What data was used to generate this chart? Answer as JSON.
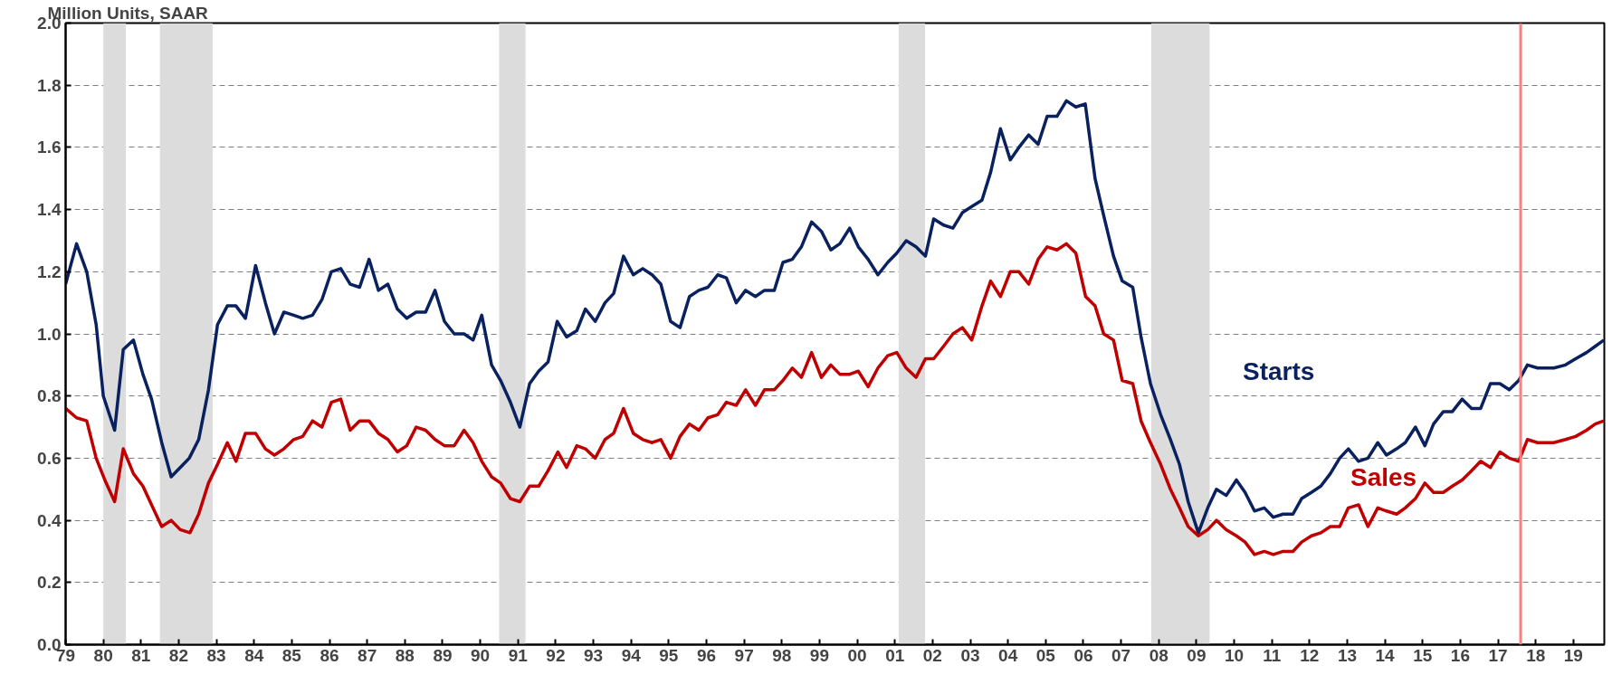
{
  "chart_data": {
    "type": "line",
    "ylabel": "Million Units, SAAR",
    "xlim": [
      1979,
      2019.82
    ],
    "ylim": [
      0,
      2
    ],
    "xticks": [
      {
        "value": 1979,
        "label": "79"
      },
      {
        "value": 1980,
        "label": "80"
      },
      {
        "value": 1981,
        "label": "81"
      },
      {
        "value": 1982,
        "label": "82"
      },
      {
        "value": 1983,
        "label": "83"
      },
      {
        "value": 1984,
        "label": "84"
      },
      {
        "value": 1985,
        "label": "85"
      },
      {
        "value": 1986,
        "label": "86"
      },
      {
        "value": 1987,
        "label": "87"
      },
      {
        "value": 1988,
        "label": "88"
      },
      {
        "value": 1989,
        "label": "89"
      },
      {
        "value": 1990,
        "label": "90"
      },
      {
        "value": 1991,
        "label": "91"
      },
      {
        "value": 1992,
        "label": "92"
      },
      {
        "value": 1993,
        "label": "93"
      },
      {
        "value": 1994,
        "label": "94"
      },
      {
        "value": 1995,
        "label": "95"
      },
      {
        "value": 1996,
        "label": "96"
      },
      {
        "value": 1997,
        "label": "97"
      },
      {
        "value": 1998,
        "label": "98"
      },
      {
        "value": 1999,
        "label": "99"
      },
      {
        "value": 2000,
        "label": "00"
      },
      {
        "value": 2001,
        "label": "01"
      },
      {
        "value": 2002,
        "label": "02"
      },
      {
        "value": 2003,
        "label": "03"
      },
      {
        "value": 2004,
        "label": "04"
      },
      {
        "value": 2005,
        "label": "05"
      },
      {
        "value": 2006,
        "label": "06"
      },
      {
        "value": 2007,
        "label": "07"
      },
      {
        "value": 2008,
        "label": "08"
      },
      {
        "value": 2009,
        "label": "09"
      },
      {
        "value": 2010,
        "label": "10"
      },
      {
        "value": 2011,
        "label": "11"
      },
      {
        "value": 2012,
        "label": "12"
      },
      {
        "value": 2013,
        "label": "13"
      },
      {
        "value": 2014,
        "label": "14"
      },
      {
        "value": 2015,
        "label": "15"
      },
      {
        "value": 2016,
        "label": "16"
      },
      {
        "value": 2017,
        "label": "17"
      },
      {
        "value": 2018,
        "label": "18"
      },
      {
        "value": 2019,
        "label": "19"
      }
    ],
    "yticks": [
      {
        "value": 0,
        "label": "0.0"
      },
      {
        "value": 0.2,
        "label": "0.2"
      },
      {
        "value": 0.4,
        "label": "0.4"
      },
      {
        "value": 0.6,
        "label": "0.6"
      },
      {
        "value": 0.8,
        "label": "0.8"
      },
      {
        "value": 1,
        "label": "1.0"
      },
      {
        "value": 1.2,
        "label": "1.2"
      },
      {
        "value": 1.4,
        "label": "1.4"
      },
      {
        "value": 1.6,
        "label": "1.6"
      },
      {
        "value": 1.8,
        "label": "1.8"
      },
      {
        "value": 2,
        "label": "2.0"
      }
    ],
    "grid": "y",
    "legend": false,
    "line_style": "solid",
    "marker": "none",
    "bands": [
      {
        "axis": "x",
        "from": 1980.0,
        "to": 1980.6,
        "label": null,
        "color": "#dcdcdc"
      },
      {
        "axis": "x",
        "from": 1981.5,
        "to": 1982.9,
        "label": null,
        "color": "#dcdcdc"
      },
      {
        "axis": "x",
        "from": 1990.5,
        "to": 1991.2,
        "label": null,
        "color": "#dcdcdc"
      },
      {
        "axis": "x",
        "from": 2001.1,
        "to": 2001.8,
        "label": null,
        "color": "#dcdcdc"
      },
      {
        "axis": "x",
        "from": 2007.8,
        "to": 2009.35,
        "label": null,
        "color": "#dcdcdc"
      }
    ],
    "ref_lines": [
      {
        "axis": "x",
        "value": 2017.6,
        "label": null,
        "color": "#ff7f7f"
      }
    ],
    "series": [
      {
        "name": "Starts",
        "color": "#0a215f",
        "x": [
          1979.0,
          1979.29,
          1979.56,
          1979.81,
          1980.0,
          1980.3,
          1980.53,
          1980.8,
          1981.05,
          1981.28,
          1981.55,
          1981.8,
          1982.04,
          1982.28,
          1982.53,
          1982.79,
          1983.03,
          1983.29,
          1983.52,
          1983.77,
          1984.04,
          1984.3,
          1984.54,
          1984.79,
          1985.05,
          1985.29,
          1985.55,
          1985.8,
          1986.05,
          1986.3,
          1986.55,
          1986.8,
          1987.05,
          1987.3,
          1987.55,
          1987.8,
          1988.05,
          1988.3,
          1988.55,
          1988.8,
          1989.05,
          1989.31,
          1989.57,
          1989.81,
          1990.04,
          1990.3,
          1990.54,
          1990.8,
          1991.05,
          1991.31,
          1991.55,
          1991.8,
          1992.04,
          1992.29,
          1992.56,
          1992.79,
          1993.05,
          1993.31,
          1993.54,
          1993.8,
          1994.06,
          1994.31,
          1994.56,
          1994.79,
          1995.05,
          1995.3,
          1995.55,
          1995.8,
          1996.04,
          1996.3,
          1996.53,
          1996.79,
          1997.04,
          1997.3,
          1997.54,
          1997.8,
          1998.03,
          1998.28,
          1998.52,
          1998.79,
          1999.05,
          1999.3,
          1999.54,
          1999.8,
          2000.03,
          2000.29,
          2000.55,
          2000.81,
          2001.05,
          2001.3,
          2001.56,
          2001.81,
          2002.03,
          2002.29,
          2002.54,
          2002.79,
          2003.04,
          2003.31,
          2003.54,
          2003.8,
          2004.06,
          2004.29,
          2004.55,
          2004.8,
          2005.04,
          2005.3,
          2005.55,
          2005.8,
          2006.05,
          2006.31,
          2006.54,
          2006.8,
          2007.03,
          2007.31,
          2007.53,
          2007.78,
          2008.05,
          2008.31,
          2008.55,
          2008.78,
          2009.05,
          2009.3,
          2009.53,
          2009.79,
          2010.06,
          2010.29,
          2010.54,
          2010.8,
          2011.04,
          2011.3,
          2011.56,
          2011.79,
          2012.05,
          2012.3,
          2012.55,
          2012.8,
          2013.03,
          2013.3,
          2013.55,
          2013.81,
          2014.04,
          2014.31,
          2014.54,
          2014.81,
          2015.06,
          2015.29,
          2015.55,
          2015.79,
          2016.05,
          2016.3,
          2016.54,
          2016.8,
          2017.05,
          2017.3,
          2017.55,
          2017.78,
          2018.05,
          2018.48,
          2018.79,
          2019.06,
          2019.35,
          2019.58,
          2019.81
        ],
        "values": [
          1.16,
          1.29,
          1.2,
          1.03,
          0.8,
          0.69,
          0.95,
          0.98,
          0.87,
          0.79,
          0.65,
          0.54,
          0.57,
          0.6,
          0.66,
          0.82,
          1.03,
          1.09,
          1.09,
          1.05,
          1.22,
          1.1,
          1.0,
          1.07,
          1.06,
          1.05,
          1.06,
          1.11,
          1.2,
          1.21,
          1.16,
          1.15,
          1.24,
          1.14,
          1.16,
          1.08,
          1.05,
          1.07,
          1.07,
          1.14,
          1.04,
          1.0,
          1.0,
          0.98,
          1.06,
          0.9,
          0.85,
          0.78,
          0.7,
          0.84,
          0.88,
          0.91,
          1.04,
          0.99,
          1.01,
          1.08,
          1.04,
          1.1,
          1.13,
          1.25,
          1.19,
          1.21,
          1.19,
          1.16,
          1.04,
          1.02,
          1.12,
          1.14,
          1.15,
          1.19,
          1.18,
          1.1,
          1.14,
          1.12,
          1.14,
          1.14,
          1.23,
          1.24,
          1.28,
          1.36,
          1.33,
          1.27,
          1.29,
          1.34,
          1.28,
          1.24,
          1.19,
          1.23,
          1.26,
          1.3,
          1.28,
          1.25,
          1.37,
          1.35,
          1.34,
          1.39,
          1.41,
          1.43,
          1.52,
          1.66,
          1.56,
          1.6,
          1.64,
          1.61,
          1.7,
          1.7,
          1.75,
          1.73,
          1.74,
          1.5,
          1.38,
          1.25,
          1.17,
          1.15,
          0.99,
          0.84,
          0.74,
          0.66,
          0.58,
          0.46,
          0.36,
          0.44,
          0.5,
          0.48,
          0.53,
          0.49,
          0.43,
          0.44,
          0.41,
          0.42,
          0.42,
          0.47,
          0.49,
          0.51,
          0.55,
          0.6,
          0.63,
          0.59,
          0.6,
          0.65,
          0.61,
          0.63,
          0.65,
          0.7,
          0.64,
          0.71,
          0.75,
          0.75,
          0.79,
          0.76,
          0.76,
          0.84,
          0.84,
          0.82,
          0.85,
          0.9,
          0.89,
          0.89,
          0.9,
          0.92,
          0.94,
          0.96,
          0.98
        ]
      },
      {
        "name": "Sales",
        "color": "#c00000",
        "x": [
          1979.0,
          1979.29,
          1979.56,
          1979.81,
          1980.04,
          1980.3,
          1980.53,
          1980.8,
          1981.05,
          1981.28,
          1981.55,
          1981.8,
          1982.04,
          1982.3,
          1982.53,
          1982.79,
          1983.03,
          1983.29,
          1983.52,
          1983.77,
          1984.04,
          1984.3,
          1984.54,
          1984.79,
          1985.05,
          1985.29,
          1985.55,
          1985.8,
          1986.05,
          1986.3,
          1986.55,
          1986.8,
          1987.05,
          1987.3,
          1987.55,
          1987.8,
          1988.05,
          1988.3,
          1988.55,
          1988.8,
          1989.05,
          1989.31,
          1989.57,
          1989.81,
          1990.04,
          1990.3,
          1990.54,
          1990.8,
          1991.05,
          1991.31,
          1991.55,
          1991.8,
          1992.06,
          1992.29,
          1992.56,
          1992.79,
          1993.05,
          1993.31,
          1993.54,
          1993.8,
          1994.06,
          1994.31,
          1994.56,
          1994.79,
          1995.05,
          1995.3,
          1995.55,
          1995.8,
          1996.04,
          1996.3,
          1996.53,
          1996.79,
          1997.04,
          1997.3,
          1997.54,
          1997.8,
          1998.03,
          1998.28,
          1998.52,
          1998.79,
          1999.05,
          1999.3,
          1999.54,
          1999.8,
          2000.03,
          2000.29,
          2000.55,
          2000.81,
          2001.05,
          2001.3,
          2001.56,
          2001.81,
          2002.03,
          2002.29,
          2002.54,
          2002.79,
          2003.04,
          2003.31,
          2003.54,
          2003.8,
          2004.06,
          2004.29,
          2004.55,
          2004.8,
          2005.04,
          2005.3,
          2005.55,
          2005.8,
          2006.06,
          2006.31,
          2006.54,
          2006.8,
          2007.03,
          2007.31,
          2007.53,
          2007.78,
          2008.05,
          2008.31,
          2008.55,
          2008.78,
          2009.05,
          2009.3,
          2009.53,
          2009.79,
          2010.06,
          2010.29,
          2010.54,
          2010.8,
          2011.04,
          2011.3,
          2011.56,
          2011.79,
          2012.05,
          2012.3,
          2012.55,
          2012.8,
          2013.03,
          2013.3,
          2013.55,
          2013.81,
          2014.04,
          2014.31,
          2014.54,
          2014.81,
          2015.06,
          2015.29,
          2015.55,
          2015.79,
          2016.05,
          2016.3,
          2016.54,
          2016.8,
          2017.05,
          2017.3,
          2017.55,
          2017.78,
          2018.05,
          2018.48,
          2018.79,
          2019.06,
          2019.35,
          2019.58,
          2019.81
        ],
        "values": [
          0.76,
          0.73,
          0.72,
          0.6,
          0.53,
          0.46,
          0.63,
          0.55,
          0.51,
          0.45,
          0.38,
          0.4,
          0.37,
          0.36,
          0.42,
          0.52,
          0.58,
          0.65,
          0.59,
          0.68,
          0.68,
          0.63,
          0.61,
          0.63,
          0.66,
          0.67,
          0.72,
          0.7,
          0.78,
          0.79,
          0.69,
          0.72,
          0.72,
          0.68,
          0.66,
          0.62,
          0.64,
          0.7,
          0.69,
          0.66,
          0.64,
          0.64,
          0.69,
          0.65,
          0.59,
          0.54,
          0.52,
          0.47,
          0.46,
          0.51,
          0.51,
          0.56,
          0.62,
          0.57,
          0.64,
          0.63,
          0.6,
          0.66,
          0.68,
          0.76,
          0.68,
          0.66,
          0.65,
          0.66,
          0.6,
          0.67,
          0.71,
          0.69,
          0.73,
          0.74,
          0.78,
          0.77,
          0.82,
          0.77,
          0.82,
          0.82,
          0.85,
          0.89,
          0.86,
          0.94,
          0.86,
          0.9,
          0.87,
          0.87,
          0.88,
          0.83,
          0.89,
          0.93,
          0.94,
          0.89,
          0.86,
          0.92,
          0.92,
          0.96,
          1.0,
          1.02,
          0.98,
          1.09,
          1.17,
          1.12,
          1.2,
          1.2,
          1.16,
          1.24,
          1.28,
          1.27,
          1.29,
          1.26,
          1.12,
          1.09,
          1.0,
          0.98,
          0.85,
          0.84,
          0.72,
          0.65,
          0.58,
          0.5,
          0.44,
          0.38,
          0.35,
          0.37,
          0.4,
          0.37,
          0.35,
          0.33,
          0.29,
          0.3,
          0.29,
          0.3,
          0.3,
          0.33,
          0.35,
          0.36,
          0.38,
          0.38,
          0.44,
          0.45,
          0.38,
          0.44,
          0.43,
          0.42,
          0.44,
          0.47,
          0.52,
          0.49,
          0.49,
          0.51,
          0.53,
          0.56,
          0.59,
          0.57,
          0.62,
          0.6,
          0.59,
          0.66,
          0.65,
          0.65,
          0.66,
          0.67,
          0.69,
          0.71,
          0.72
        ]
      }
    ]
  }
}
